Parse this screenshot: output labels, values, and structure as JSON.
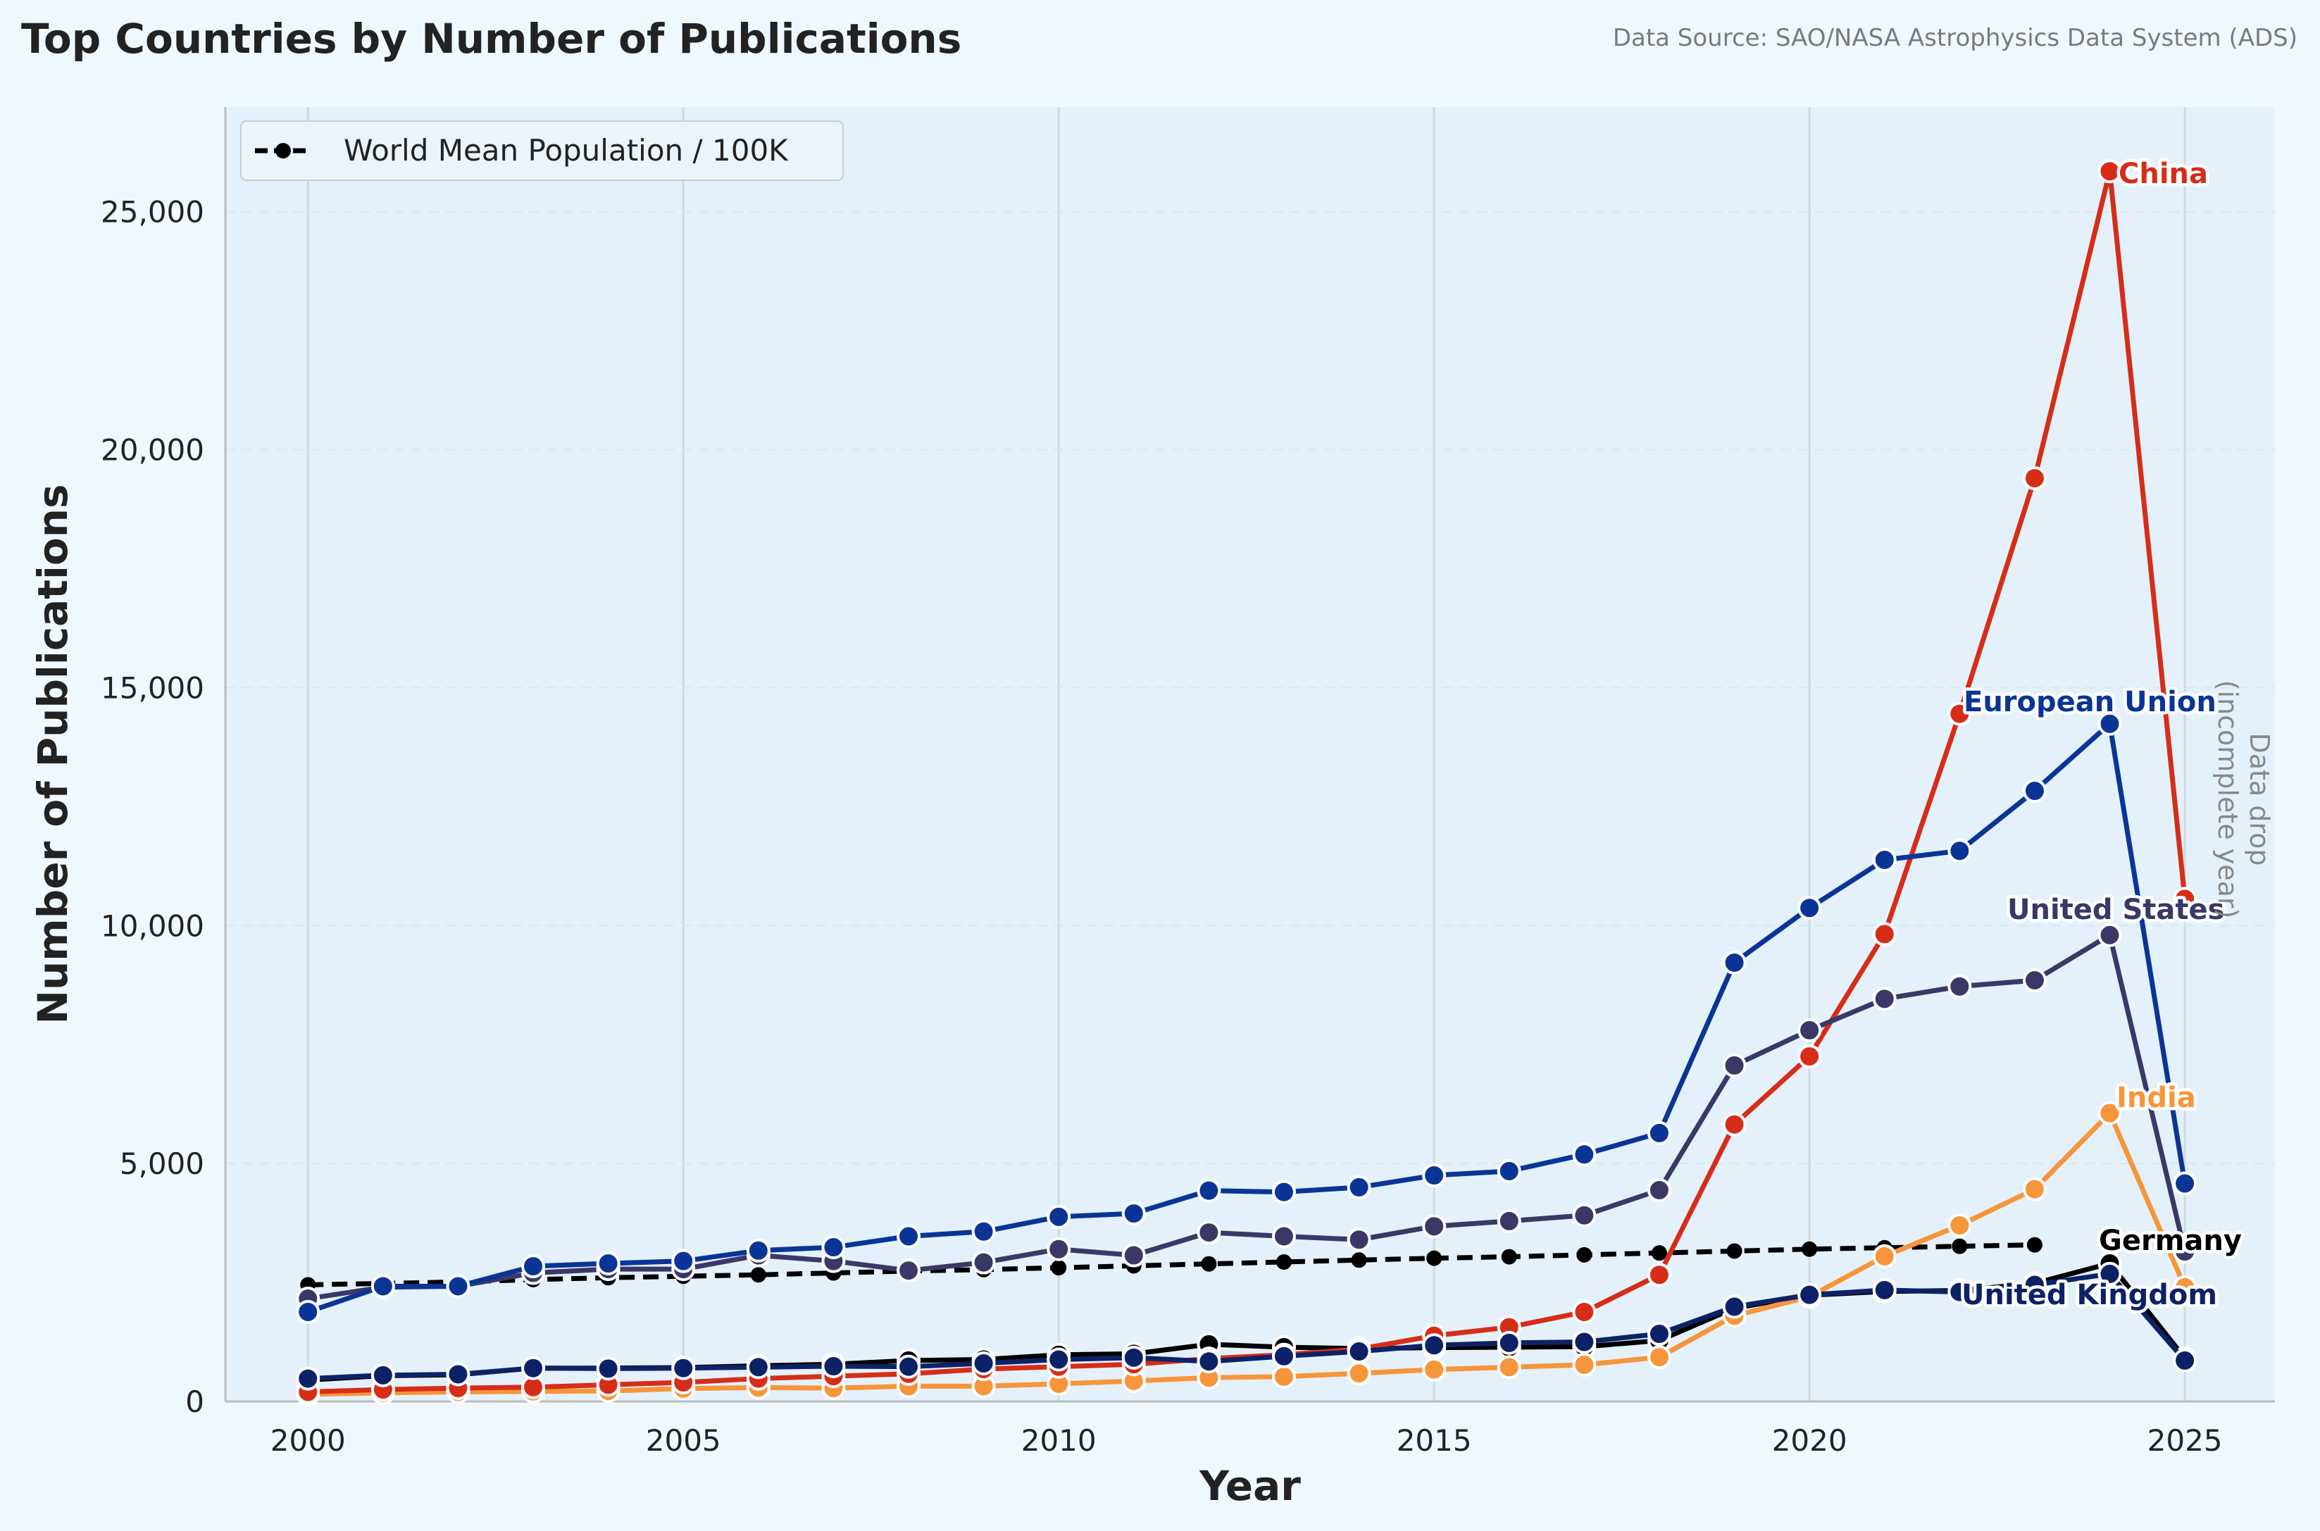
{
  "header": {
    "title": "Top Countries by Number of Publications",
    "source": "Data Source: SAO/NASA Astrophysics Data System (ADS)"
  },
  "legend": {
    "label": "World Mean Population / 100K",
    "position": "upper-left"
  },
  "annotation": {
    "line1": "Data drop",
    "line2": "(incomplete year)"
  },
  "chart_data": {
    "type": "line",
    "title": "Top Countries by Number of Publications",
    "xlabel": "Year",
    "ylabel": "Number of Publications",
    "xlim": [
      1998.9,
      2026.2
    ],
    "ylim": [
      0,
      27200
    ],
    "xticks": [
      2000,
      2005,
      2010,
      2015,
      2020,
      2025
    ],
    "yticks": [
      0,
      5000,
      10000,
      15000,
      20000,
      25000
    ],
    "ytick_labels": [
      "0",
      "5,000",
      "10,000",
      "15,000",
      "20,000",
      "25,000"
    ],
    "grid": "vertical",
    "x": [
      2000,
      2001,
      2002,
      2003,
      2004,
      2005,
      2006,
      2007,
      2008,
      2009,
      2010,
      2011,
      2012,
      2013,
      2014,
      2015,
      2016,
      2017,
      2018,
      2019,
      2020,
      2021,
      2022,
      2023,
      2024,
      2025
    ],
    "series": [
      {
        "name": "World Mean Population / 100K",
        "color": "#000000",
        "style": "dashed",
        "x": [
          2000,
          2001,
          2002,
          2003,
          2004,
          2005,
          2006,
          2007,
          2008,
          2009,
          2010,
          2011,
          2012,
          2013,
          2014,
          2015,
          2016,
          2017,
          2018,
          2019,
          2020,
          2021,
          2022,
          2023
        ],
        "values": [
          2450,
          2480,
          2510,
          2560,
          2600,
          2630,
          2660,
          2700,
          2740,
          2770,
          2810,
          2850,
          2890,
          2930,
          2970,
          3010,
          3040,
          3080,
          3120,
          3160,
          3200,
          3230,
          3260,
          3290
        ]
      },
      {
        "name": "Germany",
        "color": "#000000",
        "values": [
          450,
          540,
          560,
          700,
          700,
          710,
          750,
          780,
          860,
          880,
          980,
          1000,
          1200,
          1140,
          1110,
          1130,
          1140,
          1150,
          1280,
          1960,
          2230,
          2310,
          2330,
          2480,
          2900,
          910
        ]
      },
      {
        "name": "India",
        "color": "#f7953b",
        "values": [
          150,
          180,
          200,
          210,
          220,
          270,
          290,
          280,
          320,
          320,
          370,
          430,
          500,
          520,
          590,
          670,
          720,
          770,
          930,
          1800,
          2200,
          3050,
          3700,
          4460,
          6060,
          2400
        ]
      },
      {
        "name": "China",
        "color": "#d62d18",
        "values": [
          200,
          250,
          280,
          300,
          350,
          400,
          480,
          530,
          580,
          680,
          730,
          780,
          900,
          980,
          1100,
          1380,
          1560,
          1880,
          2660,
          5820,
          7250,
          9820,
          14450,
          19400,
          25850,
          10560
        ]
      },
      {
        "name": "United Kingdom",
        "color": "#0d2266",
        "values": [
          480,
          550,
          570,
          700,
          690,
          700,
          720,
          740,
          730,
          800,
          880,
          920,
          840,
          950,
          1050,
          1180,
          1230,
          1250,
          1420,
          1990,
          2240,
          2340,
          2300,
          2450,
          2680,
          860
        ]
      },
      {
        "name": "United States",
        "color": "#3a3866",
        "values": [
          2160,
          2400,
          2420,
          2700,
          2780,
          2780,
          3070,
          2950,
          2750,
          2920,
          3200,
          3070,
          3550,
          3470,
          3400,
          3680,
          3790,
          3910,
          4440,
          7060,
          7800,
          8460,
          8720,
          8850,
          9800,
          3150
        ]
      },
      {
        "name": "European Union",
        "color": "#0a3596",
        "values": [
          1880,
          2420,
          2420,
          2840,
          2900,
          2950,
          3170,
          3240,
          3470,
          3570,
          3880,
          3950,
          4430,
          4400,
          4500,
          4750,
          4840,
          5190,
          5640,
          9220,
          10370,
          11380,
          11570,
          12830,
          14240,
          4580
        ]
      }
    ],
    "series_labels": [
      {
        "name": "China",
        "color": "#d62d18"
      },
      {
        "name": "European Union",
        "color": "#0a3596"
      },
      {
        "name": "United States",
        "color": "#3a3866"
      },
      {
        "name": "India",
        "color": "#f7953b"
      },
      {
        "name": "Germany",
        "color": "#000000"
      },
      {
        "name": "United Kingdom",
        "color": "#0d2266"
      }
    ],
    "background": "#e4f1fb",
    "page_background": "#f0f8ff"
  }
}
